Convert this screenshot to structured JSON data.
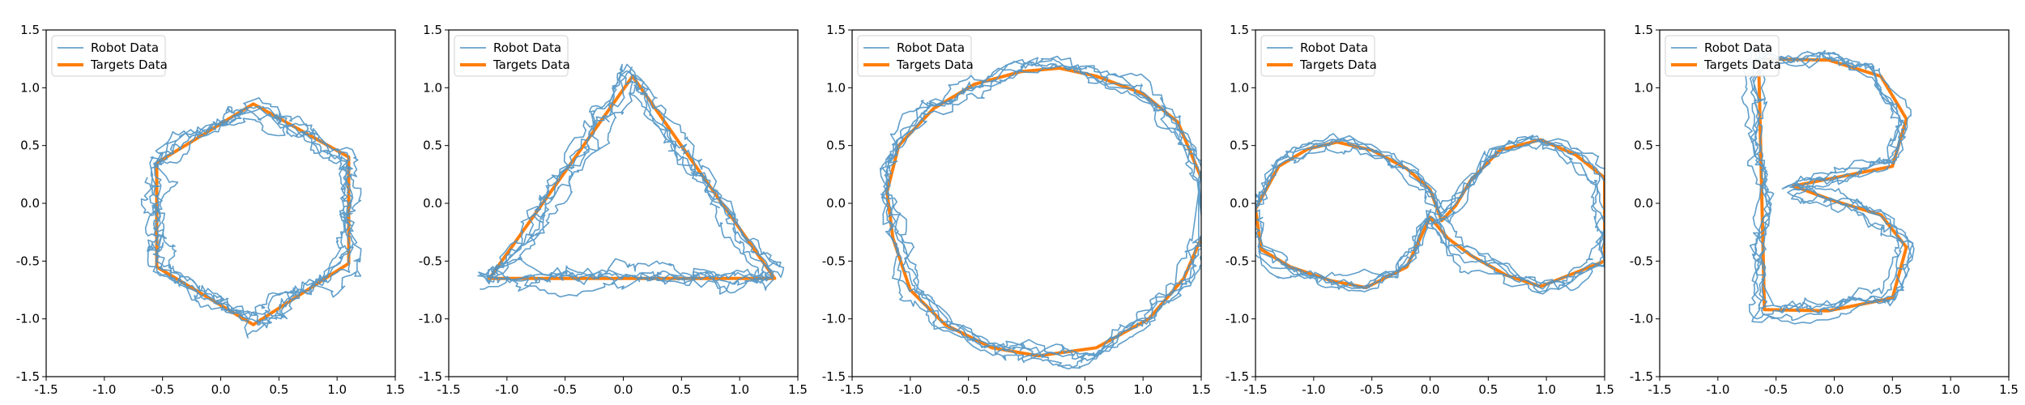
{
  "colors": {
    "robot": "#4f93c4",
    "target": "#ff7f0e",
    "axis": "#000000",
    "legend_border": "#cccccc"
  },
  "chart_data": [
    {
      "type": "line",
      "title": "",
      "xlabel": "",
      "ylabel": "",
      "xlim": [
        -1.5,
        1.5
      ],
      "ylim": [
        -1.5,
        1.5
      ],
      "xticks": [
        "-1.5",
        "-1.0",
        "-0.5",
        "0.0",
        "0.5",
        "1.0",
        "1.5"
      ],
      "yticks": [
        "-1.5",
        "-1.0",
        "-0.5",
        "0.0",
        "0.5",
        "1.0",
        "1.5"
      ],
      "grid": false,
      "legend": {
        "placement": "top-left",
        "entries": [
          "Robot Data",
          "Targets Data"
        ]
      },
      "series": [
        {
          "name": "Targets Data",
          "role": "target",
          "points": [
            [
              -0.55,
              0.35
            ],
            [
              0.28,
              0.86
            ],
            [
              1.1,
              0.4
            ],
            [
              1.1,
              -0.52
            ],
            [
              0.28,
              -1.05
            ],
            [
              -0.55,
              -0.55
            ],
            [
              -0.55,
              0.35
            ]
          ]
        },
        {
          "name": "Robot Data",
          "role": "robot",
          "shape": "hexagon",
          "points": [
            [
              -0.55,
              0.35
            ],
            [
              0.28,
              0.86
            ],
            [
              1.1,
              0.4
            ],
            [
              1.1,
              -0.52
            ],
            [
              0.28,
              -1.05
            ],
            [
              -0.55,
              -0.55
            ],
            [
              -0.55,
              0.35
            ]
          ]
        }
      ]
    },
    {
      "type": "line",
      "title": "",
      "xlabel": "",
      "ylabel": "",
      "xlim": [
        -1.5,
        1.5
      ],
      "ylim": [
        -1.5,
        1.5
      ],
      "xticks": [
        "-1.5",
        "-1.0",
        "-0.5",
        "0.0",
        "0.5",
        "1.0",
        "1.5"
      ],
      "yticks": [
        "-1.5",
        "-1.0",
        "-0.5",
        "0.0",
        "0.5",
        "1.0",
        "1.5"
      ],
      "grid": false,
      "legend": {
        "placement": "top-left",
        "entries": [
          "Robot Data",
          "Targets Data"
        ]
      },
      "series": [
        {
          "name": "Targets Data",
          "role": "target",
          "points": [
            [
              -1.15,
              -0.65
            ],
            [
              0.08,
              1.1
            ],
            [
              1.3,
              -0.65
            ],
            [
              -1.15,
              -0.65
            ]
          ]
        },
        {
          "name": "Robot Data",
          "role": "robot",
          "shape": "triangle",
          "points": [
            [
              -1.15,
              -0.65
            ],
            [
              0.08,
              1.1
            ],
            [
              1.3,
              -0.65
            ],
            [
              -1.15,
              -0.65
            ]
          ]
        }
      ]
    },
    {
      "type": "line",
      "title": "",
      "xlabel": "",
      "ylabel": "",
      "xlim": [
        -1.5,
        1.5
      ],
      "ylim": [
        -1.5,
        1.5
      ],
      "xticks": [
        "-1.5",
        "-1.0",
        "-0.5",
        "0.0",
        "0.5",
        "1.0",
        "1.5"
      ],
      "yticks": [
        "-1.5",
        "-1.0",
        "-0.5",
        "0.0",
        "0.5",
        "1.0",
        "1.5"
      ],
      "grid": false,
      "legend": {
        "placement": "top-left",
        "entries": [
          "Robot Data",
          "Targets Data"
        ]
      },
      "series": [
        {
          "name": "Targets Data",
          "role": "target",
          "points": [
            [
              1.5,
              0.22
            ],
            [
              1.3,
              0.7
            ],
            [
              1.0,
              0.95
            ],
            [
              0.6,
              1.1
            ],
            [
              0.28,
              1.17
            ],
            [
              -0.05,
              1.14
            ],
            [
              -0.45,
              1.03
            ],
            [
              -0.8,
              0.82
            ],
            [
              -1.1,
              0.5
            ],
            [
              -1.2,
              0.1
            ],
            [
              -1.15,
              -0.3
            ],
            [
              -1.0,
              -0.75
            ],
            [
              -0.7,
              -1.05
            ],
            [
              -0.3,
              -1.25
            ],
            [
              0.1,
              -1.32
            ],
            [
              0.6,
              -1.25
            ],
            [
              1.05,
              -1.0
            ],
            [
              1.35,
              -0.65
            ],
            [
              1.5,
              -0.3
            ]
          ]
        },
        {
          "name": "Robot Data",
          "role": "robot",
          "shape": "circle",
          "points": [
            [
              1.5,
              0.22
            ],
            [
              1.3,
              0.7
            ],
            [
              1.0,
              0.95
            ],
            [
              0.6,
              1.1
            ],
            [
              0.28,
              1.17
            ],
            [
              -0.05,
              1.14
            ],
            [
              -0.45,
              1.03
            ],
            [
              -0.8,
              0.82
            ],
            [
              -1.1,
              0.5
            ],
            [
              -1.2,
              0.1
            ],
            [
              -1.15,
              -0.3
            ],
            [
              -1.0,
              -0.75
            ],
            [
              -0.7,
              -1.05
            ],
            [
              -0.3,
              -1.25
            ],
            [
              0.1,
              -1.32
            ],
            [
              0.6,
              -1.25
            ],
            [
              1.05,
              -1.0
            ],
            [
              1.35,
              -0.65
            ],
            [
              1.5,
              -0.3
            ]
          ]
        }
      ]
    },
    {
      "type": "line",
      "title": "",
      "xlabel": "",
      "ylabel": "",
      "xlim": [
        -1.5,
        1.5
      ],
      "ylim": [
        -1.5,
        1.5
      ],
      "xticks": [
        "-1.5",
        "-1.0",
        "-0.5",
        "0.0",
        "0.5",
        "1.0",
        "1.5"
      ],
      "yticks": [
        "-1.5",
        "-1.0",
        "-0.5",
        "0.0",
        "0.5",
        "1.0",
        "1.5"
      ],
      "grid": false,
      "legend": {
        "placement": "top-left",
        "entries": [
          "Robot Data",
          "Targets Data"
        ]
      },
      "series": [
        {
          "name": "Targets Data",
          "role": "target",
          "points": [
            [
              -1.5,
              -0.05
            ],
            [
              -1.3,
              0.32
            ],
            [
              -1.05,
              0.47
            ],
            [
              -0.8,
              0.53
            ],
            [
              -0.5,
              0.46
            ],
            [
              -0.2,
              0.3
            ],
            [
              0.0,
              0.12
            ],
            [
              0.1,
              -0.15
            ],
            [
              0.22,
              -0.02
            ],
            [
              0.35,
              0.2
            ],
            [
              0.6,
              0.46
            ],
            [
              0.95,
              0.55
            ],
            [
              1.25,
              0.42
            ],
            [
              1.5,
              0.22
            ],
            [
              1.5,
              -0.5
            ],
            [
              1.2,
              -0.62
            ],
            [
              0.95,
              -0.72
            ],
            [
              0.65,
              -0.62
            ],
            [
              0.35,
              -0.45
            ],
            [
              0.15,
              -0.3
            ],
            [
              0.0,
              -0.12
            ],
            [
              -0.2,
              -0.55
            ],
            [
              -0.55,
              -0.73
            ],
            [
              -0.85,
              -0.67
            ],
            [
              -1.2,
              -0.55
            ],
            [
              -1.45,
              -0.4
            ],
            [
              -1.5,
              -0.05
            ]
          ]
        },
        {
          "name": "Robot Data",
          "role": "robot",
          "shape": "infinity",
          "points": [
            [
              -1.5,
              -0.05
            ],
            [
              -1.3,
              0.32
            ],
            [
              -1.05,
              0.47
            ],
            [
              -0.8,
              0.53
            ],
            [
              -0.5,
              0.46
            ],
            [
              -0.2,
              0.3
            ],
            [
              0.0,
              0.12
            ],
            [
              0.1,
              -0.15
            ],
            [
              0.22,
              -0.02
            ],
            [
              0.35,
              0.2
            ],
            [
              0.6,
              0.46
            ],
            [
              0.95,
              0.55
            ],
            [
              1.25,
              0.42
            ],
            [
              1.5,
              0.22
            ],
            [
              1.5,
              -0.5
            ],
            [
              1.2,
              -0.62
            ],
            [
              0.95,
              -0.72
            ],
            [
              0.65,
              -0.62
            ],
            [
              0.35,
              -0.45
            ],
            [
              0.15,
              -0.3
            ],
            [
              0.0,
              -0.12
            ],
            [
              -0.2,
              -0.55
            ],
            [
              -0.55,
              -0.73
            ],
            [
              -0.85,
              -0.67
            ],
            [
              -1.2,
              -0.55
            ],
            [
              -1.45,
              -0.4
            ],
            [
              -1.5,
              -0.05
            ]
          ]
        }
      ]
    },
    {
      "type": "line",
      "title": "",
      "xlabel": "",
      "ylabel": "",
      "xlim": [
        -1.5,
        1.5
      ],
      "ylim": [
        -1.5,
        1.5
      ],
      "xticks": [
        "-1.5",
        "-1.0",
        "-0.5",
        "0.0",
        "0.5",
        "1.0",
        "1.5"
      ],
      "yticks": [
        "-1.5",
        "-1.0",
        "-0.5",
        "0.0",
        "0.5",
        "1.0",
        "1.5"
      ],
      "grid": false,
      "legend": {
        "placement": "top-left",
        "entries": [
          "Robot Data",
          "Targets Data"
        ]
      },
      "series": [
        {
          "name": "Targets Data",
          "role": "target",
          "points": [
            [
              -0.65,
              1.25
            ],
            [
              -0.05,
              1.24
            ],
            [
              0.4,
              1.1
            ],
            [
              0.62,
              0.73
            ],
            [
              0.5,
              0.32
            ],
            [
              -0.35,
              0.15
            ],
            [
              0.0,
              0.02
            ],
            [
              0.4,
              -0.1
            ],
            [
              0.62,
              -0.38
            ],
            [
              0.5,
              -0.82
            ],
            [
              -0.05,
              -0.93
            ],
            [
              -0.6,
              -0.92
            ],
            [
              -0.65,
              1.25
            ]
          ]
        },
        {
          "name": "Robot Data",
          "role": "robot",
          "shape": "letter-b",
          "points": [
            [
              -0.65,
              1.25
            ],
            [
              -0.05,
              1.24
            ],
            [
              0.4,
              1.1
            ],
            [
              0.62,
              0.73
            ],
            [
              0.5,
              0.32
            ],
            [
              -0.35,
              0.15
            ],
            [
              0.0,
              0.02
            ],
            [
              0.4,
              -0.1
            ],
            [
              0.62,
              -0.38
            ],
            [
              0.5,
              -0.82
            ],
            [
              -0.05,
              -0.93
            ],
            [
              -0.6,
              -0.92
            ],
            [
              -0.65,
              1.25
            ]
          ]
        }
      ]
    }
  ]
}
